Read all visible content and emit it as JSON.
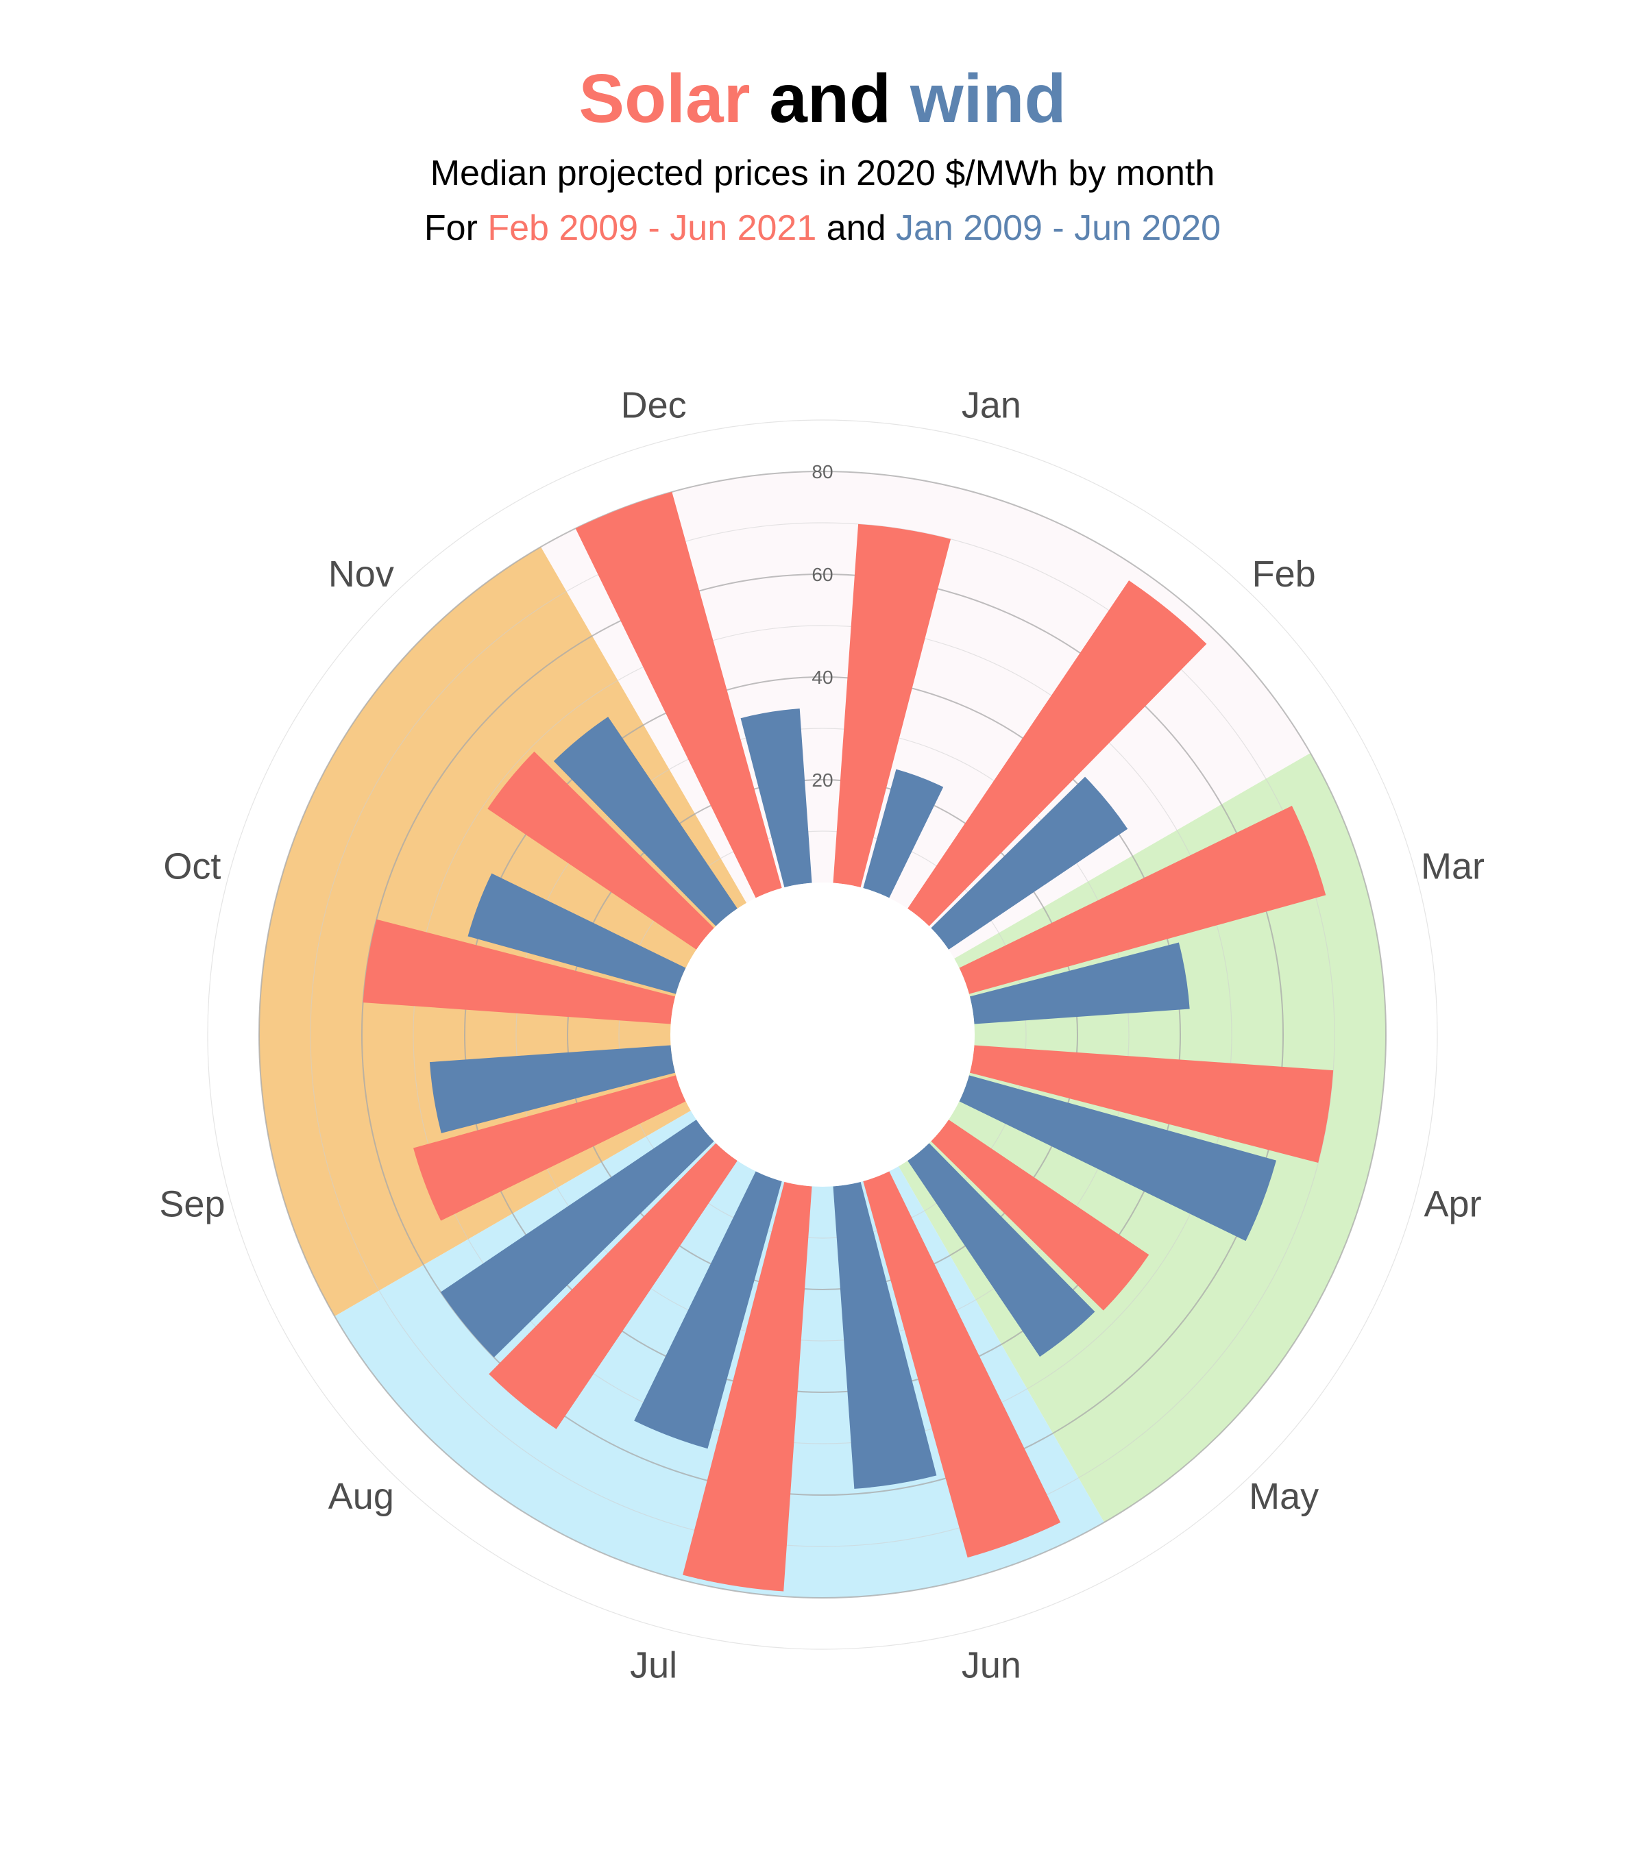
{
  "title": {
    "part1": "Solar",
    "part2": " and ",
    "part3": "wind"
  },
  "subtitle": {
    "line1": "Median projected prices in 2020 $/MWh by month",
    "line2_a": "For ",
    "line2_b": "Feb 2009 - Jun 2021",
    "line2_c": " and ",
    "line2_d": "Jan 2009 - Jun 2020"
  },
  "colors": {
    "solar": "#FA766A",
    "wind": "#5C83B0",
    "title_black": "#000000",
    "winter_bg": "#FDF8FA",
    "spring_bg": "#D6F1C6",
    "summer_bg": "#C8EEFB",
    "fall_bg": "#F7CA87",
    "grid": "#bdbdbd",
    "month_text": "#4d4d4d"
  },
  "chart_data": {
    "type": "bar",
    "polar": true,
    "categories": [
      "Jan",
      "Feb",
      "Mar",
      "Apr",
      "May",
      "Jun",
      "Jul",
      "Aug",
      "Sep",
      "Oct",
      "Nov",
      "Dec"
    ],
    "series": [
      {
        "name": "Solar",
        "values": [
          70,
          77,
          72,
          70,
          47,
          76,
          79,
          63,
          53,
          60,
          49,
          80
        ]
      },
      {
        "name": "Wind",
        "values": [
          24,
          42,
          42,
          62,
          46,
          59,
          54,
          60,
          47,
          42,
          45,
          34
        ]
      }
    ],
    "seasons": [
      {
        "months": [
          "Dec",
          "Jan",
          "Feb"
        ],
        "color": "#FDF8FA"
      },
      {
        "months": [
          "Mar",
          "Apr",
          "May"
        ],
        "color": "#D6F1C6"
      },
      {
        "months": [
          "Jun",
          "Jul",
          "Aug"
        ],
        "color": "#C8EEFB"
      },
      {
        "months": [
          "Sep",
          "Oct",
          "Nov"
        ],
        "color": "#F7CA87"
      }
    ],
    "rlim": [
      0,
      90
    ],
    "r_ticks": [
      20,
      40,
      60,
      80
    ],
    "grid": true
  }
}
